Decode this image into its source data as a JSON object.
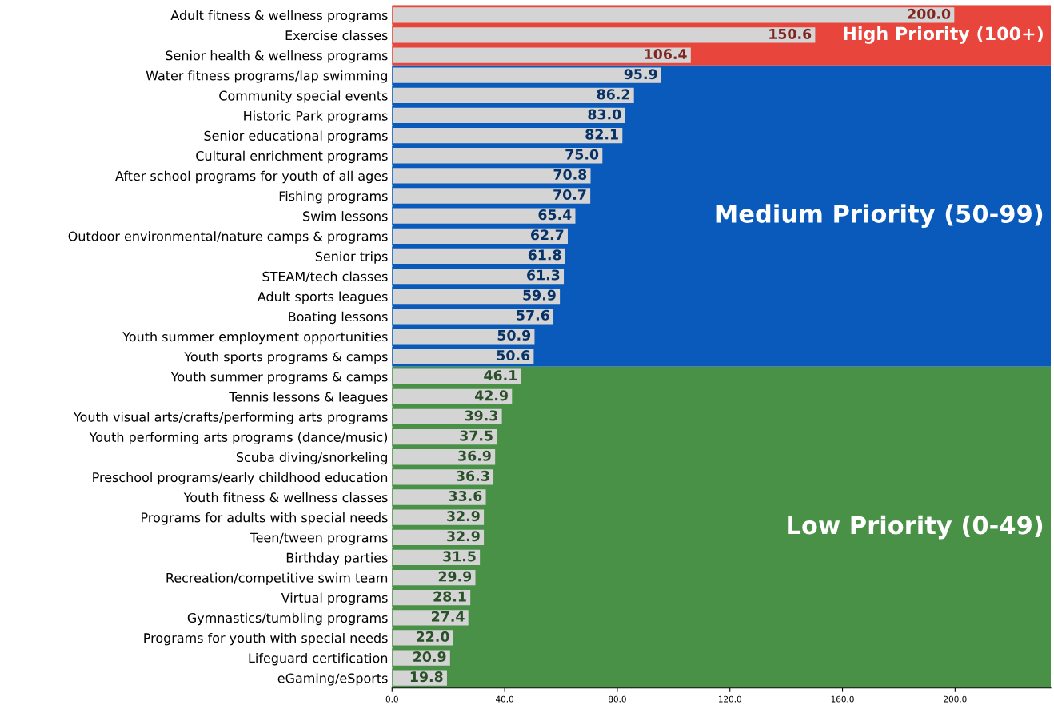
{
  "chart_data": {
    "type": "bar",
    "orientation": "horizontal",
    "categories": [
      "Adult fitness & wellness programs",
      "Exercise classes",
      "Senior health & wellness programs",
      "Water fitness programs/lap swimming",
      "Community special events",
      "Historic Park programs",
      "Senior educational programs",
      "Cultural enrichment programs",
      "After school programs for youth of all ages",
      "Fishing programs",
      "Swim lessons",
      "Outdoor environmental/nature camps & programs",
      "Senior trips",
      "STEAM/tech classes",
      "Adult sports leagues",
      "Boating lessons",
      "Youth summer employment opportunities",
      "Youth sports programs & camps",
      "Youth summer programs & camps",
      "Tennis lessons & leagues",
      "Youth visual arts/crafts/performing arts programs",
      "Youth performing arts programs (dance/music)",
      "Scuba diving/snorkeling",
      "Preschool programs/early childhood education",
      "Youth fitness & wellness classes",
      "Programs for adults with special needs",
      "Teen/tween programs",
      "Birthday parties",
      "Recreation/competitive swim team",
      "Virtual programs",
      "Gymnastics/tumbling programs",
      "Programs for youth with special needs",
      "Lifeguard certification",
      "eGaming/eSports"
    ],
    "values": [
      200.0,
      150.6,
      106.4,
      95.9,
      86.2,
      83.0,
      82.1,
      75.0,
      70.8,
      70.7,
      65.4,
      62.7,
      61.8,
      61.3,
      59.9,
      57.6,
      50.9,
      50.6,
      46.1,
      42.9,
      39.3,
      37.5,
      36.9,
      36.3,
      33.6,
      32.9,
      32.9,
      31.5,
      29.9,
      28.1,
      27.4,
      22.0,
      20.9,
      19.8
    ],
    "color": "#d4d4d4",
    "value_labels": [
      "200.0",
      "150.6",
      "106.4",
      "95.9",
      "86.2",
      "83.0",
      "82.1",
      "75.0",
      "70.8",
      "70.7",
      "65.4",
      "62.7",
      "61.8",
      "61.3",
      "59.9",
      "57.6",
      "50.9",
      "50.6",
      "46.1",
      "42.9",
      "39.3",
      "37.5",
      "36.9",
      "36.3",
      "33.6",
      "32.9",
      "32.9",
      "31.5",
      "29.9",
      "28.1",
      "27.4",
      "22.0",
      "20.9",
      "19.8"
    ],
    "xlim": [
      0,
      234
    ],
    "xticks": [
      {
        "value": 0,
        "label": "0.0"
      },
      {
        "value": 40,
        "label": "40.0"
      },
      {
        "value": 80,
        "label": "80.0"
      },
      {
        "value": 120,
        "label": "120.0"
      },
      {
        "value": 160,
        "label": "160.0"
      },
      {
        "value": 200,
        "label": "200.0"
      }
    ],
    "grid": false,
    "bands": [
      {
        "axis": "y",
        "from": "Adult fitness & wellness programs",
        "to": "Senior health & wellness programs",
        "label": "High Priority (100+)",
        "color": "#e8453c"
      },
      {
        "axis": "y",
        "from": "Water fitness programs/lap swimming",
        "to": "Youth sports programs & camps",
        "label": "Medium Priority (50-99)",
        "color": "#0a5abb"
      },
      {
        "axis": "y",
        "from": "Youth summer programs & camps",
        "to": "eGaming/eSports",
        "label": "Low Priority (0-49)",
        "color": "#4a9148"
      }
    ]
  }
}
